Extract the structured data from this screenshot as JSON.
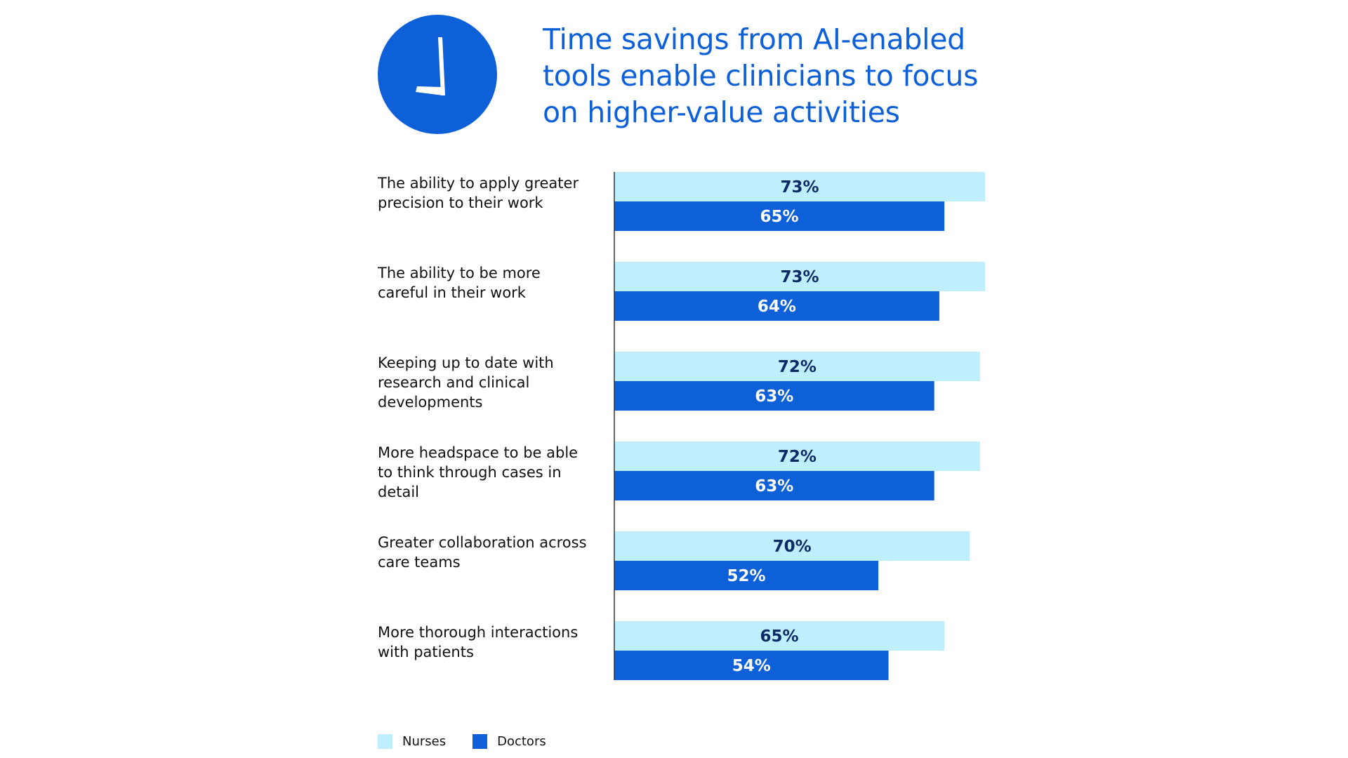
{
  "chart_data": {
    "type": "bar",
    "orientation": "horizontal",
    "title": "Time savings from AI-enabled tools enable clinicians to focus on higher-value activities",
    "categories": [
      "The ability to apply greater precision to their work",
      "The ability to be more careful in their work",
      "Keeping up to date with research and clinical developments",
      "More headspace to be able to think through cases in detail",
      "Greater collaboration across care teams",
      "More thorough interactions with patients"
    ],
    "series": [
      {
        "name": "Nurses",
        "color": "#bfeefc",
        "label_color": "#0b2a66",
        "values": [
          73,
          73,
          72,
          72,
          70,
          65
        ],
        "labels": [
          "73%",
          "73%",
          "72%",
          "72%",
          "70%",
          "65%"
        ]
      },
      {
        "name": "Doctors",
        "color": "#0d60d8",
        "label_color": "#ffffff",
        "values": [
          65,
          64,
          63,
          63,
          52,
          54
        ],
        "labels": [
          "65%",
          "64%",
          "63%",
          "63%",
          "52%",
          "54%"
        ]
      }
    ],
    "value_unit": "%",
    "xlim": [
      0,
      73
    ],
    "grid": false,
    "legend_position": "bottom-left"
  },
  "icon": "clock-icon",
  "colors": {
    "accent": "#0d60d8",
    "nurses": "#bfeefc",
    "doctors": "#0d60d8"
  }
}
